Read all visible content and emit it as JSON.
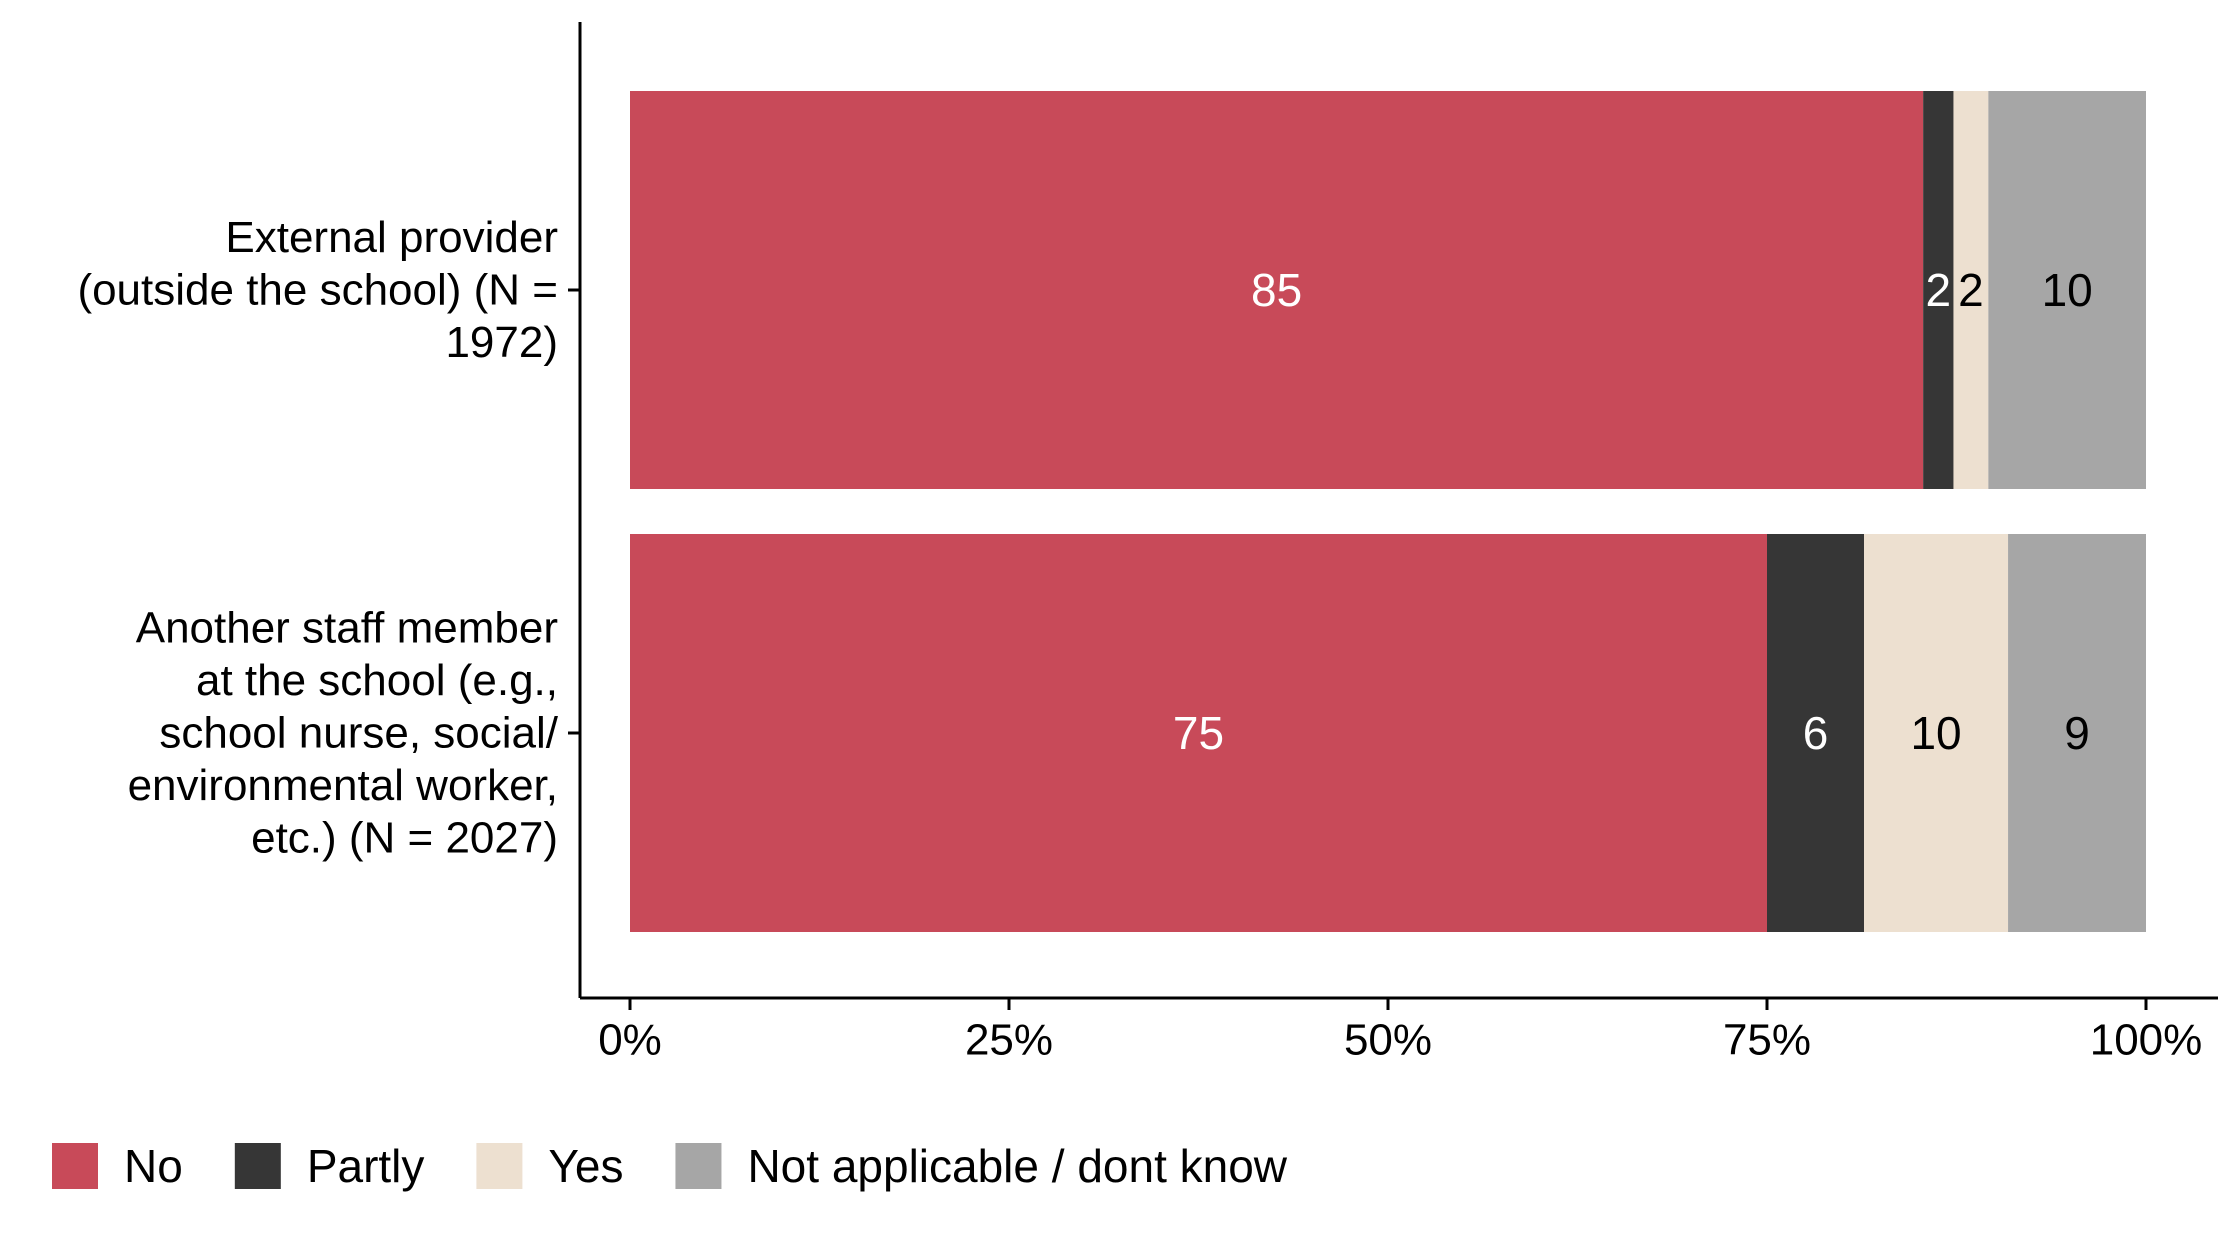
{
  "chart_data": {
    "type": "bar",
    "orientation": "horizontal",
    "stacked": true,
    "title": "",
    "xlabel": "",
    "ylabel": "",
    "xlim": [
      0,
      100
    ],
    "x_ticks": [
      "0%",
      "25%",
      "50%",
      "75%",
      "100%"
    ],
    "x_tick_values": [
      0,
      25,
      50,
      75,
      100
    ],
    "grid": false,
    "legend_position": "bottom-left",
    "categories": [
      {
        "label_lines": [
          "External provider",
          "(outside the school) (N =",
          "1972)"
        ],
        "values": [
          85.3,
          2,
          2.3,
          10.4
        ],
        "labels": [
          "85",
          "2",
          "2",
          "10"
        ]
      },
      {
        "label_lines": [
          "Another staff member",
          "at the school (e.g.,",
          "school nurse, social/",
          "environmental worker,",
          "etc.) (N = 2027)"
        ],
        "values": [
          75,
          6.4,
          9.5,
          9.1
        ],
        "labels": [
          "75",
          "6",
          "10",
          "9"
        ]
      }
    ],
    "series": [
      {
        "name": "No",
        "color": "#c84a59",
        "label_color": "#ffffff"
      },
      {
        "name": "Partly",
        "color": "#363636",
        "label_color": "#ffffff"
      },
      {
        "name": "Yes",
        "color": "#ede0d0",
        "label_color": "#000000"
      },
      {
        "name": "Not applicable / dont know",
        "color": "#a6a6a6",
        "label_color": "#000000"
      }
    ]
  }
}
